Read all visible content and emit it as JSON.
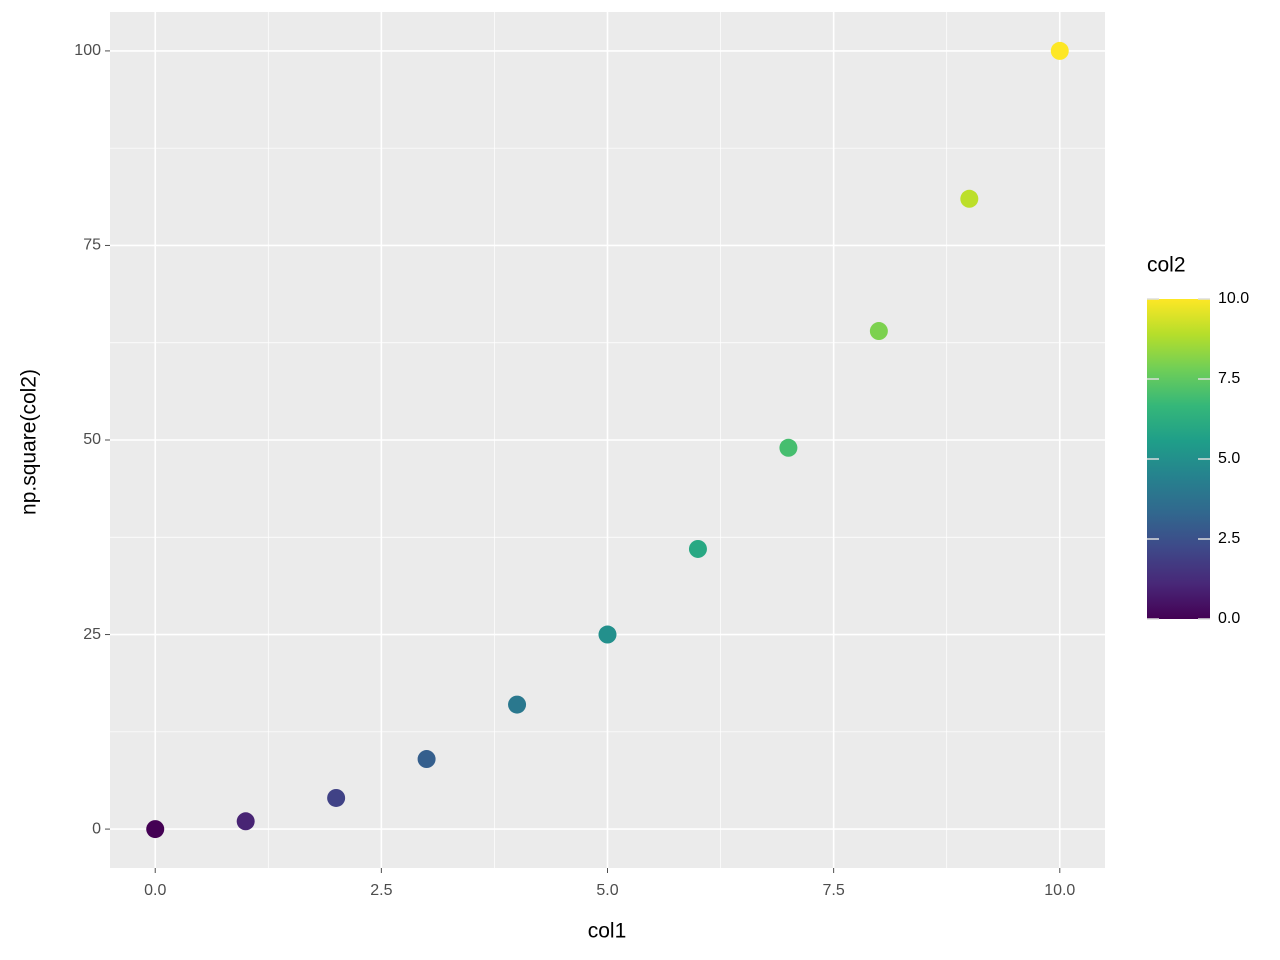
{
  "chart_data": {
    "type": "scatter",
    "x_label": "col1",
    "y_label": "np.square(col2)",
    "x": [
      0,
      1,
      2,
      3,
      4,
      5,
      6,
      7,
      8,
      9,
      10
    ],
    "series": [
      {
        "values": [
          0,
          1,
          4,
          9,
          16,
          25,
          36,
          49,
          64,
          81,
          100
        ],
        "color_values": [
          0,
          1,
          2,
          3,
          4,
          5,
          6,
          7,
          8,
          9,
          10
        ]
      }
    ],
    "xlim": [
      -0.5,
      10.5
    ],
    "xticks": [
      {
        "value": 0,
        "label": "0.0"
      },
      2.5,
      {
        "value": 5,
        "label": "5.0"
      },
      7.5,
      {
        "value": 10,
        "label": "10.0"
      }
    ],
    "ylim": [
      -5,
      105
    ],
    "yticks": [
      0,
      25,
      50,
      75,
      100
    ],
    "grid": true,
    "minor_grid": true,
    "colormap": "viridis",
    "colorbar": {
      "title": "col2",
      "lim": [
        0,
        10
      ],
      "ticks": [
        {
          "value": 0,
          "label": "0.0"
        },
        2.5,
        {
          "value": 5,
          "label": "5.0"
        },
        7.5,
        {
          "value": 10,
          "label": "10.0"
        }
      ]
    }
  }
}
